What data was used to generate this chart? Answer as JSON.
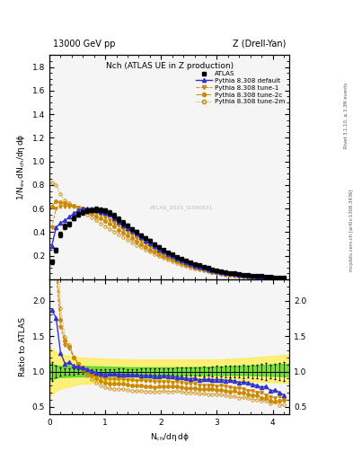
{
  "title_top": "13000 GeV pp",
  "title_top_right": "Z (Drell-Yan)",
  "title_main": "Nch (ATLAS UE in Z production)",
  "ylabel_main": "1/N_{ev} dN_{ch}/d\\eta d\\phi",
  "ylabel_ratio": "Ratio to ATLAS",
  "right_label1": "Rivet 3.1.10, ≥ 3.3M events",
  "right_label2": "mcplots.cern.ch [arXiv:1306.3436]",
  "watermark": "ATLAS_2015_I1390531",
  "xlim": [
    0,
    4.3
  ],
  "ylim_main": [
    0,
    1.9
  ],
  "ylim_ratio": [
    0.4,
    2.3
  ],
  "yticks_main": [
    0.2,
    0.4,
    0.6,
    0.8,
    1.0,
    1.2,
    1.4,
    1.6,
    1.8
  ],
  "yticks_ratio": [
    0.5,
    1.0,
    1.5,
    2.0
  ],
  "xticks": [
    0,
    1,
    2,
    3,
    4
  ],
  "atlas_x": [
    0.04,
    0.12,
    0.2,
    0.28,
    0.36,
    0.44,
    0.52,
    0.6,
    0.68,
    0.76,
    0.84,
    0.92,
    1.0,
    1.08,
    1.16,
    1.24,
    1.32,
    1.4,
    1.48,
    1.56,
    1.64,
    1.72,
    1.8,
    1.88,
    1.96,
    2.04,
    2.12,
    2.2,
    2.28,
    2.36,
    2.44,
    2.52,
    2.6,
    2.68,
    2.76,
    2.84,
    2.92,
    3.0,
    3.08,
    3.16,
    3.24,
    3.32,
    3.4,
    3.48,
    3.56,
    3.64,
    3.72,
    3.8,
    3.88,
    3.96,
    4.04,
    4.12,
    4.2
  ],
  "atlas_y": [
    0.15,
    0.25,
    0.38,
    0.45,
    0.47,
    0.52,
    0.55,
    0.57,
    0.585,
    0.59,
    0.595,
    0.59,
    0.585,
    0.565,
    0.54,
    0.51,
    0.48,
    0.455,
    0.43,
    0.405,
    0.375,
    0.35,
    0.325,
    0.3,
    0.275,
    0.25,
    0.23,
    0.21,
    0.19,
    0.175,
    0.16,
    0.145,
    0.13,
    0.12,
    0.108,
    0.097,
    0.087,
    0.078,
    0.07,
    0.063,
    0.057,
    0.051,
    0.046,
    0.041,
    0.037,
    0.033,
    0.03,
    0.027,
    0.024,
    0.022,
    0.019,
    0.017,
    0.015
  ],
  "atlas_yerr": [
    0.02,
    0.02,
    0.02,
    0.02,
    0.02,
    0.02,
    0.02,
    0.02,
    0.02,
    0.02,
    0.02,
    0.02,
    0.02,
    0.02,
    0.02,
    0.02,
    0.02,
    0.015,
    0.015,
    0.015,
    0.015,
    0.015,
    0.015,
    0.012,
    0.012,
    0.012,
    0.01,
    0.01,
    0.01,
    0.009,
    0.009,
    0.008,
    0.008,
    0.007,
    0.007,
    0.006,
    0.006,
    0.006,
    0.005,
    0.005,
    0.005,
    0.004,
    0.004,
    0.004,
    0.003,
    0.003,
    0.003,
    0.003,
    0.003,
    0.002,
    0.002,
    0.002,
    0.002
  ],
  "pythia_default_x": [
    0.04,
    0.12,
    0.2,
    0.28,
    0.36,
    0.44,
    0.52,
    0.6,
    0.68,
    0.76,
    0.84,
    0.92,
    1.0,
    1.08,
    1.16,
    1.24,
    1.32,
    1.4,
    1.48,
    1.56,
    1.64,
    1.72,
    1.8,
    1.88,
    1.96,
    2.04,
    2.12,
    2.2,
    2.28,
    2.36,
    2.44,
    2.52,
    2.6,
    2.68,
    2.76,
    2.84,
    2.92,
    3.0,
    3.08,
    3.16,
    3.24,
    3.32,
    3.4,
    3.48,
    3.56,
    3.64,
    3.72,
    3.8,
    3.88,
    3.96,
    4.04,
    4.12,
    4.2
  ],
  "pythia_default_y": [
    0.28,
    0.44,
    0.48,
    0.5,
    0.53,
    0.56,
    0.585,
    0.6,
    0.6,
    0.595,
    0.585,
    0.575,
    0.56,
    0.545,
    0.52,
    0.49,
    0.46,
    0.435,
    0.41,
    0.385,
    0.355,
    0.33,
    0.305,
    0.28,
    0.255,
    0.235,
    0.215,
    0.195,
    0.175,
    0.16,
    0.145,
    0.13,
    0.118,
    0.106,
    0.096,
    0.086,
    0.077,
    0.069,
    0.062,
    0.055,
    0.05,
    0.044,
    0.039,
    0.035,
    0.031,
    0.027,
    0.024,
    0.021,
    0.019,
    0.016,
    0.014,
    0.012,
    0.01
  ],
  "tune1_x": [
    0.04,
    0.12,
    0.2,
    0.28,
    0.36,
    0.44,
    0.52,
    0.6,
    0.68,
    0.76,
    0.84,
    0.92,
    1.0,
    1.08,
    1.16,
    1.24,
    1.32,
    1.4,
    1.48,
    1.56,
    1.64,
    1.72,
    1.8,
    1.88,
    1.96,
    2.04,
    2.12,
    2.2,
    2.28,
    2.36,
    2.44,
    2.52,
    2.6,
    2.68,
    2.76,
    2.84,
    2.92,
    3.0,
    3.08,
    3.16,
    3.24,
    3.32,
    3.4,
    3.48,
    3.56,
    3.64,
    3.72,
    3.8,
    3.88,
    3.96,
    4.04,
    4.12,
    4.2
  ],
  "tune1_y": [
    0.44,
    0.6,
    0.62,
    0.62,
    0.62,
    0.62,
    0.61,
    0.6,
    0.59,
    0.575,
    0.56,
    0.545,
    0.525,
    0.505,
    0.48,
    0.455,
    0.428,
    0.402,
    0.378,
    0.353,
    0.328,
    0.305,
    0.28,
    0.258,
    0.236,
    0.215,
    0.196,
    0.178,
    0.162,
    0.147,
    0.133,
    0.12,
    0.108,
    0.097,
    0.087,
    0.078,
    0.07,
    0.062,
    0.056,
    0.05,
    0.044,
    0.039,
    0.035,
    0.031,
    0.027,
    0.024,
    0.021,
    0.019,
    0.016,
    0.014,
    0.012,
    0.011,
    0.009
  ],
  "tune2c_x": [
    0.04,
    0.12,
    0.2,
    0.28,
    0.36,
    0.44,
    0.52,
    0.6,
    0.68,
    0.76,
    0.84,
    0.92,
    1.0,
    1.08,
    1.16,
    1.24,
    1.32,
    1.4,
    1.48,
    1.56,
    1.64,
    1.72,
    1.8,
    1.88,
    1.96,
    2.04,
    2.12,
    2.2,
    2.28,
    2.36,
    2.44,
    2.52,
    2.6,
    2.68,
    2.76,
    2.84,
    2.92,
    3.0,
    3.08,
    3.16,
    3.24,
    3.32,
    3.4,
    3.48,
    3.56,
    3.64,
    3.72,
    3.8,
    3.88,
    3.96,
    4.04,
    4.12,
    4.2
  ],
  "tune2c_y": [
    0.62,
    0.66,
    0.655,
    0.645,
    0.635,
    0.625,
    0.61,
    0.595,
    0.575,
    0.555,
    0.535,
    0.515,
    0.493,
    0.47,
    0.447,
    0.422,
    0.397,
    0.372,
    0.347,
    0.323,
    0.299,
    0.277,
    0.255,
    0.235,
    0.216,
    0.198,
    0.181,
    0.165,
    0.15,
    0.136,
    0.123,
    0.111,
    0.1,
    0.09,
    0.081,
    0.073,
    0.065,
    0.058,
    0.052,
    0.046,
    0.041,
    0.037,
    0.032,
    0.029,
    0.025,
    0.022,
    0.02,
    0.017,
    0.015,
    0.013,
    0.011,
    0.01,
    0.009
  ],
  "tune2m_x": [
    0.04,
    0.12,
    0.2,
    0.28,
    0.36,
    0.44,
    0.52,
    0.6,
    0.68,
    0.76,
    0.84,
    0.92,
    1.0,
    1.08,
    1.16,
    1.24,
    1.32,
    1.4,
    1.48,
    1.56,
    1.64,
    1.72,
    1.8,
    1.88,
    1.96,
    2.04,
    2.12,
    2.2,
    2.28,
    2.36,
    2.44,
    2.52,
    2.6,
    2.68,
    2.76,
    2.84,
    2.92,
    3.0,
    3.08,
    3.16,
    3.24,
    3.32,
    3.4,
    3.48,
    3.56,
    3.64,
    3.72,
    3.8,
    3.88,
    3.96,
    4.04,
    4.12,
    4.2
  ],
  "tune2m_y": [
    0.82,
    0.8,
    0.72,
    0.67,
    0.645,
    0.625,
    0.6,
    0.575,
    0.55,
    0.525,
    0.5,
    0.475,
    0.452,
    0.43,
    0.407,
    0.383,
    0.36,
    0.337,
    0.315,
    0.293,
    0.272,
    0.252,
    0.233,
    0.214,
    0.197,
    0.181,
    0.165,
    0.151,
    0.138,
    0.125,
    0.113,
    0.102,
    0.092,
    0.082,
    0.074,
    0.066,
    0.059,
    0.053,
    0.047,
    0.042,
    0.037,
    0.033,
    0.029,
    0.026,
    0.023,
    0.02,
    0.018,
    0.016,
    0.014,
    0.012,
    0.011,
    0.009,
    0.008
  ],
  "green_band_x": [
    0.0,
    0.08,
    0.16,
    0.5,
    1.0,
    1.5,
    2.0,
    2.5,
    3.0,
    3.5,
    4.0,
    4.3
  ],
  "green_band_lo": [
    0.88,
    0.9,
    0.92,
    0.93,
    0.94,
    0.95,
    0.95,
    0.95,
    0.95,
    0.95,
    0.94,
    0.93
  ],
  "green_band_hi": [
    1.12,
    1.1,
    1.08,
    1.08,
    1.07,
    1.06,
    1.06,
    1.06,
    1.07,
    1.08,
    1.1,
    1.11
  ],
  "yellow_band_x": [
    0.0,
    0.08,
    0.16,
    0.5,
    1.0,
    1.5,
    2.0,
    2.5,
    3.0,
    3.5,
    4.0,
    4.3
  ],
  "yellow_band_lo": [
    0.65,
    0.7,
    0.75,
    0.82,
    0.85,
    0.87,
    0.87,
    0.87,
    0.87,
    0.86,
    0.85,
    0.84
  ],
  "yellow_band_hi": [
    1.35,
    1.3,
    1.25,
    1.2,
    1.18,
    1.17,
    1.17,
    1.17,
    1.17,
    1.19,
    1.22,
    1.24
  ],
  "color_default": "#3333cc",
  "color_orange": "#cc8800",
  "color_green": "#00cc00",
  "color_yellow": "#ffee44",
  "bg_color": "#f5f5f5"
}
